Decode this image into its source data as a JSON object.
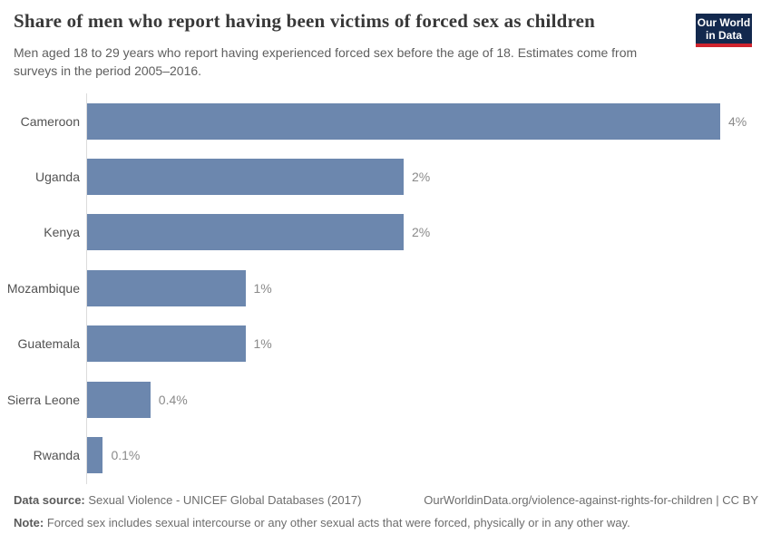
{
  "header": {
    "title": "Share of men who report having been victims of forced sex as children",
    "subtitle": "Men aged 18 to 29 years who report having experienced forced sex before the age of 18. Estimates come from surveys in the period 2005–2016.",
    "logo_line1": "Our World",
    "logo_line2": "in Data"
  },
  "chart_data": {
    "type": "bar",
    "orientation": "horizontal",
    "title": "Share of men who report having been victims of forced sex as children",
    "categories": [
      "Cameroon",
      "Uganda",
      "Kenya",
      "Mozambique",
      "Guatemala",
      "Sierra Leone",
      "Rwanda"
    ],
    "values": [
      4,
      2,
      2,
      1,
      1,
      0.4,
      0.1
    ],
    "value_labels": [
      "4%",
      "2%",
      "2%",
      "1%",
      "1%",
      "0.4%",
      "0.1%"
    ],
    "unit": "%",
    "xlim": [
      0,
      4
    ],
    "grid": false,
    "legend": "none",
    "bar_color": "#6c87ae"
  },
  "footer": {
    "data_source_label": "Data source:",
    "data_source_text": "Sexual Violence - UNICEF Global Databases (2017)",
    "link_text": "OurWorldinData.org/violence-against-rights-for-children | CC BY",
    "note_label": "Note:",
    "note_text": "Forced sex includes sexual intercourse or any other sexual acts that were forced, physically or in any other way."
  },
  "colors": {
    "bar": "#6c87ae",
    "axis_line": "#dcdcdc",
    "logo_background": "#13294e",
    "logo_accent": "#cf242e",
    "title_text": "#383838",
    "muted_text": "#6d6d6d"
  }
}
